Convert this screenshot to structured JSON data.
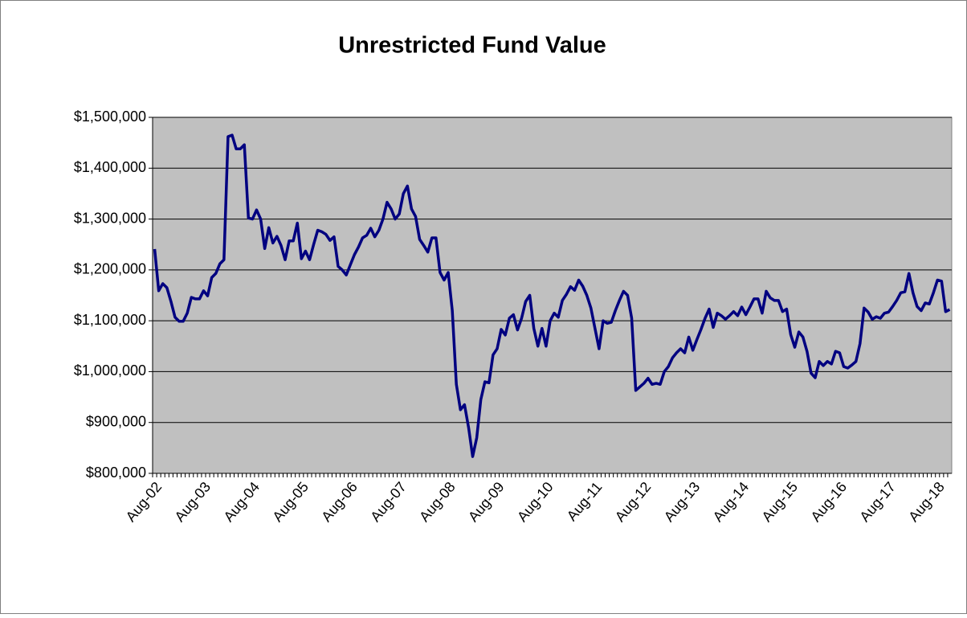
{
  "chart_data": {
    "type": "line",
    "title": "Unrestricted Fund Value",
    "categories": [
      "Aug-02",
      null,
      null,
      null,
      null,
      null,
      null,
      null,
      null,
      null,
      null,
      null,
      "Aug-03",
      null,
      null,
      null,
      null,
      null,
      null,
      null,
      null,
      null,
      null,
      null,
      "Aug-04",
      null,
      null,
      null,
      null,
      null,
      null,
      null,
      null,
      null,
      null,
      null,
      "Aug-05",
      null,
      null,
      null,
      null,
      null,
      null,
      null,
      null,
      null,
      null,
      null,
      "Aug-06",
      null,
      null,
      null,
      null,
      null,
      null,
      null,
      null,
      null,
      null,
      null,
      "Aug-07",
      null,
      null,
      null,
      null,
      null,
      null,
      null,
      null,
      null,
      null,
      null,
      "Aug-08",
      null,
      null,
      null,
      null,
      null,
      null,
      null,
      null,
      null,
      null,
      null,
      "Aug-09",
      null,
      null,
      null,
      null,
      null,
      null,
      null,
      null,
      null,
      null,
      null,
      "Aug-10",
      null,
      null,
      null,
      null,
      null,
      null,
      null,
      null,
      null,
      null,
      null,
      "Aug-11",
      null,
      null,
      null,
      null,
      null,
      null,
      null,
      null,
      null,
      null,
      null,
      "Aug-12",
      null,
      null,
      null,
      null,
      null,
      null,
      null,
      null,
      null,
      null,
      null,
      "Aug-13",
      null,
      null,
      null,
      null,
      null,
      null,
      null,
      null,
      null,
      null,
      null,
      "Aug-14",
      null,
      null,
      null,
      null,
      null,
      null,
      null,
      null,
      null,
      null,
      null,
      "Aug-15",
      null,
      null,
      null,
      null,
      null,
      null,
      null,
      null,
      null,
      null,
      null,
      "Aug-16",
      null,
      null,
      null,
      null,
      null,
      null,
      null,
      null,
      null,
      null,
      null,
      "Aug-17",
      null,
      null,
      null,
      null,
      null,
      null,
      null,
      null,
      null,
      null,
      null,
      "Aug-18",
      null,
      null,
      null
    ],
    "values": [
      1241000,
      1159000,
      1173000,
      1165000,
      1138000,
      1107000,
      1099000,
      1099000,
      1115000,
      1146000,
      1143000,
      1143000,
      1159000,
      1149000,
      1185000,
      1193000,
      1212000,
      1220000,
      1462000,
      1465000,
      1438000,
      1438000,
      1446000,
      1302000,
      1300000,
      1318000,
      1300000,
      1242000,
      1283000,
      1253000,
      1266000,
      1248000,
      1220000,
      1257000,
      1257000,
      1292000,
      1222000,
      1237000,
      1220000,
      1250000,
      1278000,
      1275000,
      1270000,
      1258000,
      1265000,
      1207000,
      1200000,
      1190000,
      1210000,
      1230000,
      1245000,
      1263000,
      1268000,
      1282000,
      1265000,
      1278000,
      1300000,
      1333000,
      1320000,
      1300000,
      1310000,
      1350000,
      1365000,
      1320000,
      1305000,
      1260000,
      1248000,
      1235000,
      1263000,
      1263000,
      1195000,
      1180000,
      1195000,
      1120000,
      975000,
      925000,
      935000,
      890000,
      833000,
      870000,
      945000,
      980000,
      978000,
      1033000,
      1045000,
      1083000,
      1072000,
      1105000,
      1112000,
      1082000,
      1105000,
      1138000,
      1150000,
      1085000,
      1050000,
      1085000,
      1050000,
      1100000,
      1115000,
      1107000,
      1140000,
      1152000,
      1167000,
      1160000,
      1180000,
      1168000,
      1150000,
      1125000,
      1085000,
      1045000,
      1100000,
      1095000,
      1097000,
      1120000,
      1140000,
      1158000,
      1150000,
      1105000,
      963000,
      970000,
      977000,
      987000,
      975000,
      977000,
      975000,
      1000000,
      1010000,
      1027000,
      1037000,
      1045000,
      1037000,
      1068000,
      1042000,
      1063000,
      1083000,
      1105000,
      1123000,
      1087000,
      1115000,
      1110000,
      1103000,
      1110000,
      1118000,
      1110000,
      1127000,
      1112000,
      1127000,
      1143000,
      1143000,
      1115000,
      1158000,
      1145000,
      1140000,
      1140000,
      1118000,
      1123000,
      1073000,
      1048000,
      1078000,
      1068000,
      1040000,
      997000,
      988000,
      1020000,
      1012000,
      1020000,
      1015000,
      1040000,
      1037000,
      1010000,
      1007000,
      1013000,
      1020000,
      1055000,
      1125000,
      1117000,
      1103000,
      1108000,
      1105000,
      1115000,
      1117000,
      1128000,
      1140000,
      1155000,
      1157000,
      1193000,
      1155000,
      1128000,
      1120000,
      1135000,
      1133000,
      1155000,
      1180000,
      1178000,
      1118000,
      1122000
    ],
    "color": "#000080",
    "ylim": [
      800000,
      1500000
    ],
    "yticks": [
      {
        "value": 800000,
        "label": "$800,000"
      },
      {
        "value": 900000,
        "label": "$900,000"
      },
      {
        "value": 1000000,
        "label": "$1,000,000"
      },
      {
        "value": 1100000,
        "label": "$1,100,000"
      },
      {
        "value": 1200000,
        "label": "$1,200,000"
      },
      {
        "value": 1300000,
        "label": "$1,300,000"
      },
      {
        "value": 1400000,
        "label": "$1,400,000"
      },
      {
        "value": 1500000,
        "label": "$1,500,000"
      }
    ],
    "grid": true
  }
}
